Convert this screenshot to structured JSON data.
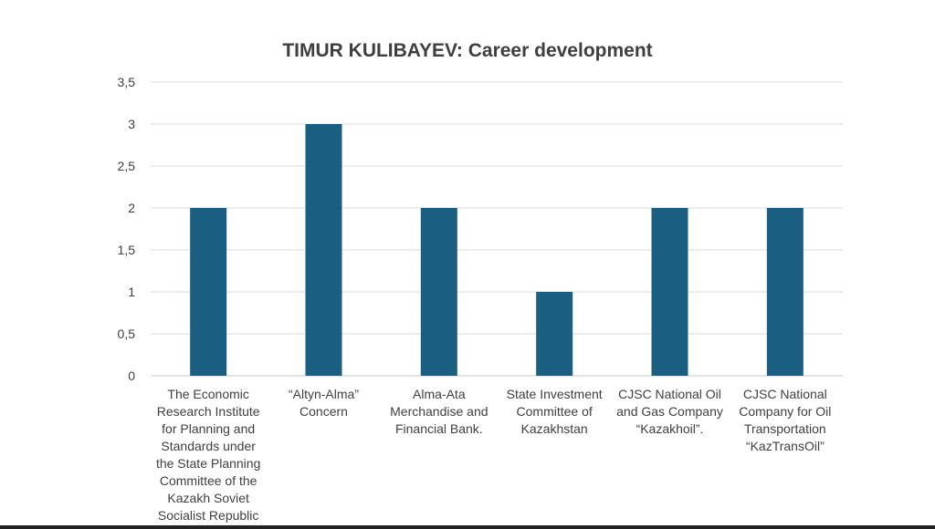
{
  "chart_data": {
    "type": "bar",
    "title": "TIMUR KULIBAYEV: Career development",
    "xlabel": "",
    "ylabel": "",
    "categories": [
      "The Economic Research Institute for Planning and Standards under the State Planning Committee of the Kazakh Soviet Socialist Republic",
      "“Altyn-Alma” Concern",
      "Alma-Ata Merchandise and Financial Bank.",
      "State Investment Committee of Kazakhstan",
      "CJSC National Oil and Gas Company “Kazakhoil”.",
      "CJSC National Company for Oil Transportation “KazTransOil”"
    ],
    "values": [
      2,
      3,
      2,
      1,
      2,
      2
    ],
    "ylim": [
      0,
      3.5
    ],
    "yticks": [
      "0",
      "0,5",
      "1",
      "1,5",
      "2",
      "2,5",
      "3",
      "3,5"
    ],
    "grid": true,
    "bar_color": "#1a5f82"
  }
}
